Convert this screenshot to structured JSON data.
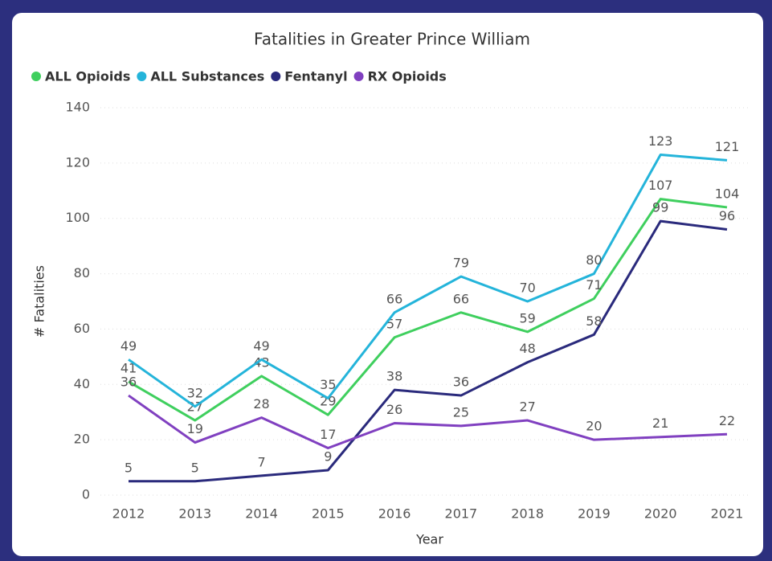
{
  "chart_data": {
    "type": "line",
    "title": "Fatalities in Greater Prince William",
    "x_label": "Year",
    "y_label": "# Fatalities",
    "categories": [
      "2012",
      "2013",
      "2014",
      "2015",
      "2016",
      "2017",
      "2018",
      "2019",
      "2020",
      "2021"
    ],
    "series": [
      {
        "name": "ALL Opioids",
        "color": "#3fcf5e",
        "values": [
          41,
          27,
          43,
          29,
          57,
          66,
          59,
          71,
          107,
          104
        ]
      },
      {
        "name": "ALL Substances",
        "color": "#24b4da",
        "values": [
          49,
          32,
          49,
          35,
          66,
          79,
          70,
          80,
          123,
          121
        ]
      },
      {
        "name": "Fentanyl",
        "color": "#2a2a7c",
        "values": [
          5,
          5,
          7,
          9,
          38,
          36,
          48,
          58,
          99,
          96
        ]
      },
      {
        "name": "RX Opioids",
        "color": "#8040c0",
        "values": [
          36,
          19,
          28,
          17,
          26,
          25,
          27,
          20,
          21,
          22
        ]
      }
    ],
    "ylim": [
      0,
      140
    ],
    "yticks": [
      0,
      20,
      40,
      60,
      80,
      100,
      120,
      140
    ],
    "grid": true,
    "legend": "top-left"
  }
}
